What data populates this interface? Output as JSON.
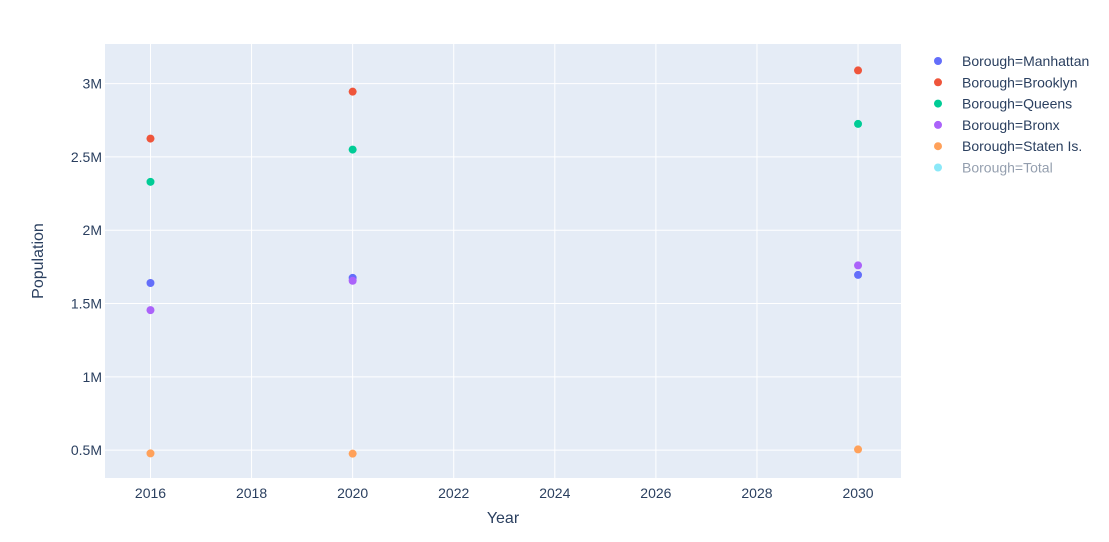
{
  "chart_data": {
    "type": "scatter",
    "xlabel": "Year",
    "ylabel": "Population",
    "xlim": [
      2015.1,
      2030.85
    ],
    "ylim": [
      310000,
      3270000
    ],
    "xticks": [
      2016,
      2018,
      2020,
      2022,
      2024,
      2026,
      2028,
      2030
    ],
    "xtick_labels": [
      "2016",
      "2018",
      "2020",
      "2022",
      "2024",
      "2026",
      "2028",
      "2030"
    ],
    "yticks": [
      500000,
      1000000,
      1500000,
      2000000,
      2500000,
      3000000
    ],
    "ytick_labels": [
      "0.5M",
      "1M",
      "1.5M",
      "2M",
      "2.5M",
      "3M"
    ],
    "grid": true,
    "legend_position": "right",
    "series": [
      {
        "name": "Borough=Manhattan",
        "color": "#636efa",
        "visible": true,
        "points": [
          [
            2016,
            1640000
          ],
          [
            2020,
            1675000
          ],
          [
            2030,
            1695000
          ]
        ]
      },
      {
        "name": "Borough=Brooklyn",
        "color": "#EF553B",
        "visible": true,
        "points": [
          [
            2016,
            2625000
          ],
          [
            2020,
            2945000
          ],
          [
            2030,
            3090000
          ]
        ]
      },
      {
        "name": "Borough=Queens",
        "color": "#00cc96",
        "visible": true,
        "points": [
          [
            2016,
            2330000
          ],
          [
            2020,
            2550000
          ],
          [
            2030,
            2725000
          ]
        ]
      },
      {
        "name": "Borough=Bronx",
        "color": "#ab63fa",
        "visible": true,
        "points": [
          [
            2016,
            1455000
          ],
          [
            2020,
            1655000
          ],
          [
            2030,
            1760000
          ]
        ]
      },
      {
        "name": "Borough=Staten Is.",
        "color": "#FFA15A",
        "visible": true,
        "points": [
          [
            2016,
            478000
          ],
          [
            2020,
            476000
          ],
          [
            2030,
            505000
          ]
        ]
      },
      {
        "name": "Borough=Total",
        "color": "#19d3f3",
        "visible": false,
        "points": []
      }
    ]
  }
}
